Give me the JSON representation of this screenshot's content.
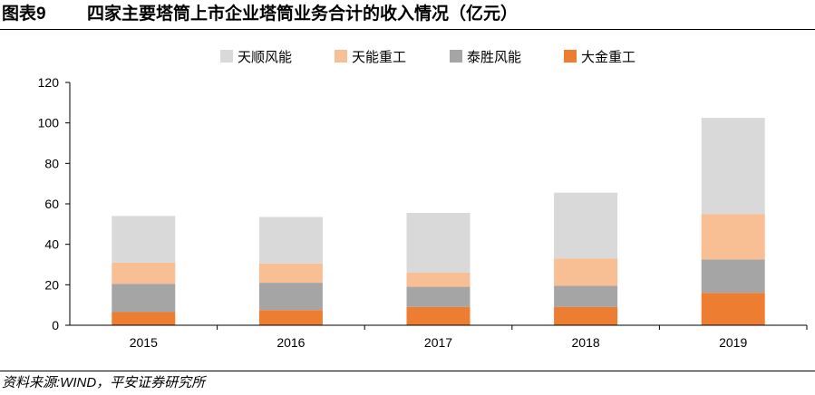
{
  "header": {
    "label": "图表9",
    "title": "四家主要塔筒上市企业塔筒业务合计的收入情况（亿元）"
  },
  "footer": {
    "source": "资料来源:WIND，平安证券研究所"
  },
  "chart_data": {
    "type": "bar",
    "stacked": true,
    "title": "四家主要塔筒上市企业塔筒业务合计的收入情况（亿元）",
    "xlabel": "",
    "ylabel": "",
    "categories": [
      "2015",
      "2016",
      "2017",
      "2018",
      "2019"
    ],
    "ylim": [
      0,
      120
    ],
    "yticks": [
      0,
      20,
      40,
      60,
      80,
      100,
      120
    ],
    "grid": false,
    "legend_position": "top",
    "series": [
      {
        "name": "大金重工",
        "color": "#ED7D31",
        "values": [
          6.5,
          7.5,
          9,
          9,
          16
        ]
      },
      {
        "name": "泰胜风能",
        "color": "#A5A5A5",
        "values": [
          14,
          13.5,
          10,
          10.5,
          16.5
        ]
      },
      {
        "name": "天能重工",
        "color": "#F8BF95",
        "values": [
          10.5,
          9.5,
          7,
          13.5,
          22.5
        ]
      },
      {
        "name": "天顺风能",
        "color": "#D9D9D9",
        "values": [
          23,
          23,
          29.5,
          32.5,
          47.5
        ]
      }
    ],
    "legend_order": [
      "天顺风能",
      "天能重工",
      "泰胜风能",
      "大金重工"
    ]
  }
}
